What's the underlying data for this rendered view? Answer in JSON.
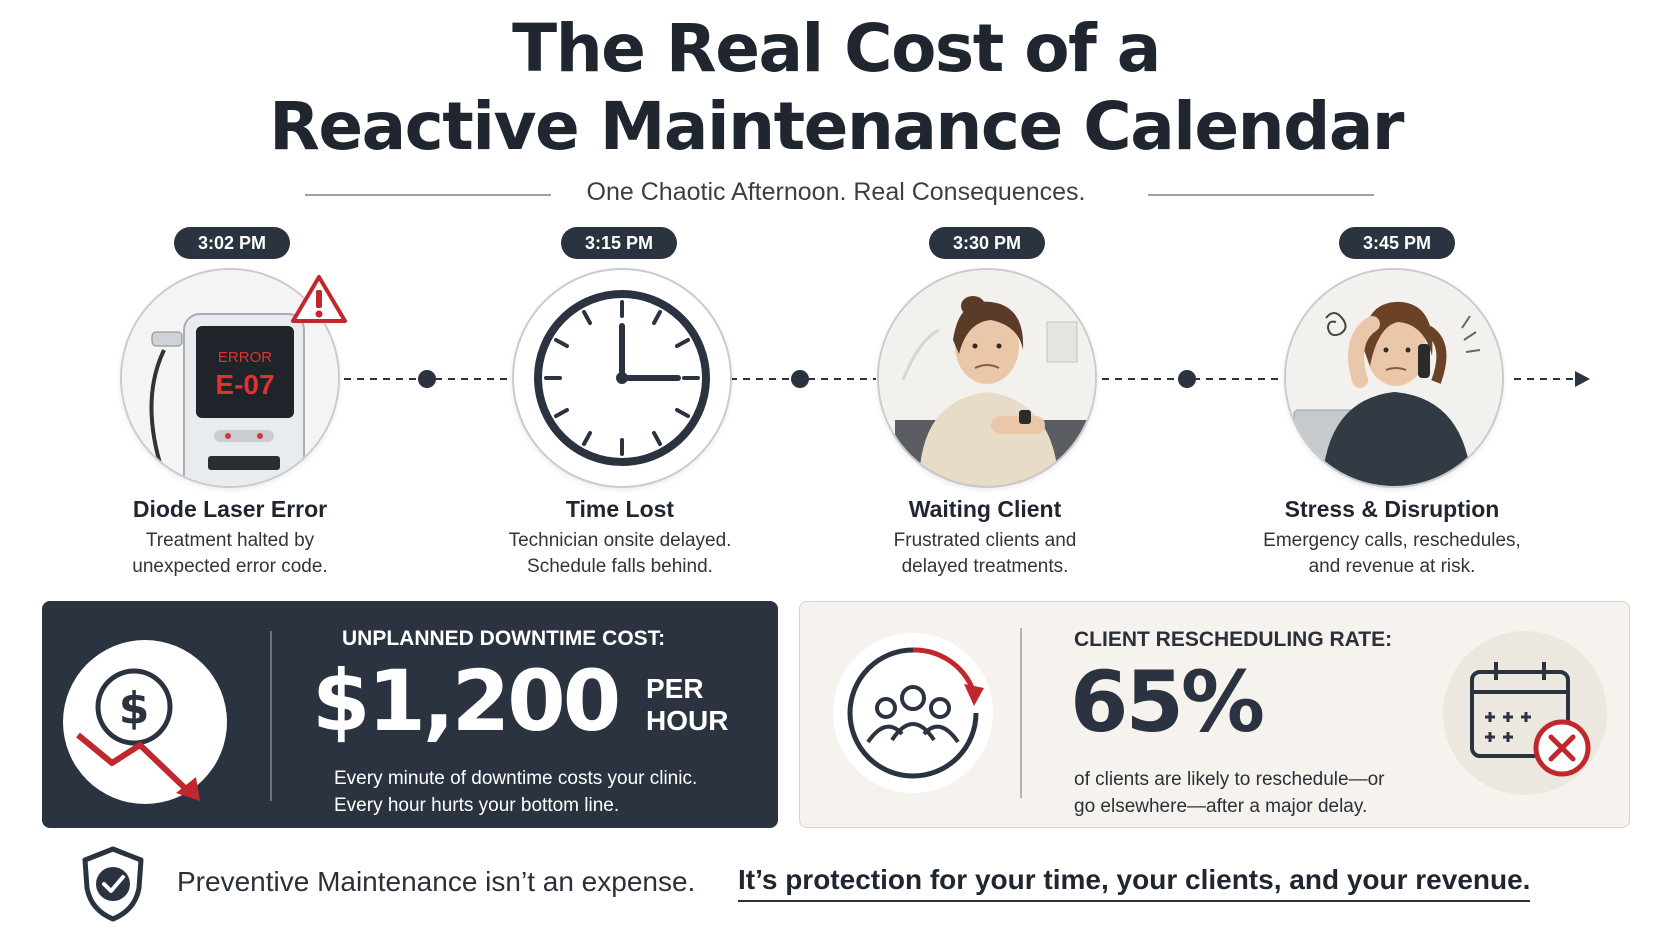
{
  "title_line1": "The Real Cost of a",
  "title_line2": "Reactive Maintenance Calendar",
  "subtitle": "One Chaotic Afternoon. Real Consequences.",
  "timeline": [
    {
      "time": "3:02 PM",
      "title": "Diode Laser Error",
      "desc_line1": "Treatment halted by",
      "desc_line2": "unexpected error code.",
      "icon": "laser-device-error-icon"
    },
    {
      "time": "3:15 PM",
      "title": "Time Lost",
      "desc_line1": "Technician onsite delayed.",
      "desc_line2": "Schedule falls behind.",
      "icon": "clock-icon"
    },
    {
      "time": "3:30 PM",
      "title": "Waiting Client",
      "desc_line1": "Frustrated clients and",
      "desc_line2": "delayed treatments.",
      "icon": "waiting-client-icon"
    },
    {
      "time": "3:45 PM",
      "title": "Stress & Disruption",
      "desc_line1": "Emergency calls, reschedules,",
      "desc_line2": "and revenue at risk.",
      "icon": "stressed-staff-icon"
    }
  ],
  "device_screen": {
    "line1": "ERROR",
    "line2": "E-07"
  },
  "downtime": {
    "label": "UNPLANNED DOWNTIME COST:",
    "value": "$1,200",
    "unit_line1": "PER",
    "unit_line2": "HOUR",
    "desc_line1": "Every minute of downtime costs your clinic.",
    "desc_line2": "Every hour hurts your bottom line.",
    "icon": "dollar-down-arrow-icon"
  },
  "rescheduling": {
    "label": "CLIENT RESCHEDULING RATE:",
    "value": "65%",
    "desc_line1": "of clients are likely to reschedule—or",
    "desc_line2": "go elsewhere—after a major delay.",
    "icon": "group-cycle-icon",
    "icon2": "calendar-cancel-icon"
  },
  "footer": {
    "text": "Preventive Maintenance isn’t an expense.",
    "emphasis": "It’s protection for your time, your clients, and your revenue.",
    "icon": "shield-check-icon"
  },
  "colors": {
    "dark": "#2b3340",
    "accent_red": "#c0282e",
    "cream": "#f6f3ee"
  }
}
